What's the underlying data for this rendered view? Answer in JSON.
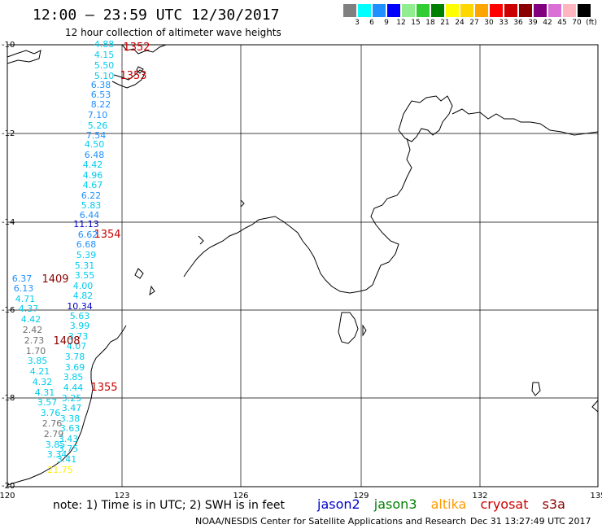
{
  "header": {
    "title": "12:00 – 23:59 UTC 12/30/2017",
    "subtitle": "12 hour collection of altimeter wave heights"
  },
  "colorbar": {
    "labels": [
      "3",
      "6",
      "9",
      "12",
      "15",
      "18",
      "21",
      "24",
      "27",
      "30",
      "33",
      "36",
      "39",
      "42",
      "45",
      "70",
      "(ft)"
    ],
    "colors": [
      "#808080",
      "#00ffff",
      "#1e90ff",
      "#0000ff",
      "#90ee90",
      "#32cd32",
      "#008000",
      "#ffff00",
      "#ffd700",
      "#ffa500",
      "#ff0000",
      "#cc0000",
      "#8b0000",
      "#800080",
      "#da70d6",
      "#ffb6c1",
      "#000000"
    ]
  },
  "axes": {
    "lat_labels": [
      "-10",
      "-12",
      "-14",
      "-16",
      "-18",
      "-20"
    ],
    "lon_labels": [
      "120",
      "123",
      "126",
      "129",
      "132",
      "135"
    ]
  },
  "passes": {
    "labels": [
      {
        "text": "1352",
        "color": "#cc0000"
      },
      {
        "text": "1353",
        "color": "#cc0000"
      },
      {
        "text": "1354",
        "color": "#cc0000"
      },
      {
        "text": "1409",
        "color": "#8b0000"
      },
      {
        "text": "1408",
        "color": "#8b0000"
      },
      {
        "text": "1355",
        "color": "#cc0000"
      }
    ]
  },
  "track_main": [
    {
      "v": "4.88",
      "c": "#00ccee"
    },
    {
      "v": "4.15",
      "c": "#00ccee"
    },
    {
      "v": "5.50",
      "c": "#00ccee"
    },
    {
      "v": "5.10",
      "c": "#00ccee"
    },
    {
      "v": "6.38",
      "c": "#1e90ff"
    },
    {
      "v": "6.53",
      "c": "#1e90ff"
    },
    {
      "v": "8.22",
      "c": "#1e90ff"
    },
    {
      "v": "7.10",
      "c": "#1e90ff"
    },
    {
      "v": "5.26",
      "c": "#00ccee"
    },
    {
      "v": "7.54",
      "c": "#1e90ff"
    },
    {
      "v": "4.50",
      "c": "#00ccee"
    },
    {
      "v": "6.48",
      "c": "#1e90ff"
    },
    {
      "v": "4.42",
      "c": "#00ccee"
    },
    {
      "v": "4.96",
      "c": "#00ccee"
    },
    {
      "v": "4.67",
      "c": "#00ccee"
    },
    {
      "v": "6.22",
      "c": "#1e90ff"
    },
    {
      "v": "5.83",
      "c": "#00ccee"
    },
    {
      "v": "6.44",
      "c": "#1e90ff"
    },
    {
      "v": "11.13",
      "c": "#0000cc"
    },
    {
      "v": "6.62",
      "c": "#1e90ff"
    },
    {
      "v": "6.68",
      "c": "#1e90ff"
    },
    {
      "v": "5.39",
      "c": "#00ccee"
    },
    {
      "v": "5.31",
      "c": "#00ccee"
    },
    {
      "v": "3.55",
      "c": "#00ccee"
    },
    {
      "v": "4.00",
      "c": "#00ccee"
    },
    {
      "v": "4.82",
      "c": "#00ccee"
    },
    {
      "v": "10.34",
      "c": "#0000cc"
    },
    {
      "v": "5.63",
      "c": "#00ccee"
    },
    {
      "v": "3.99",
      "c": "#00ccee"
    },
    {
      "v": "3.73",
      "c": "#00ccee"
    },
    {
      "v": "4.07",
      "c": "#00ccee"
    },
    {
      "v": "3.78",
      "c": "#00ccee"
    },
    {
      "v": "3.69",
      "c": "#00ccee"
    },
    {
      "v": "3.85",
      "c": "#00ccee"
    },
    {
      "v": "4.44",
      "c": "#00ccee"
    },
    {
      "v": "3.25",
      "c": "#00ccee"
    },
    {
      "v": "3.47",
      "c": "#00ccee"
    },
    {
      "v": "3.38",
      "c": "#00ccee"
    },
    {
      "v": "3.63",
      "c": "#00ccee"
    },
    {
      "v": "3.43",
      "c": "#00ccee"
    },
    {
      "v": "3.75",
      "c": "#00ccee"
    },
    {
      "v": "3.41",
      "c": "#00ccee"
    }
  ],
  "track_west": [
    {
      "v": "6.37",
      "c": "#1e90ff"
    },
    {
      "v": "6.13",
      "c": "#1e90ff"
    },
    {
      "v": "4.71",
      "c": "#00ccee"
    },
    {
      "v": "4.37",
      "c": "#00ccee"
    },
    {
      "v": "4.42",
      "c": "#00ccee"
    },
    {
      "v": "2.42",
      "c": "#707070"
    },
    {
      "v": "2.73",
      "c": "#707070"
    },
    {
      "v": "1.70",
      "c": "#707070"
    },
    {
      "v": "3.85",
      "c": "#00ccee"
    },
    {
      "v": "4.21",
      "c": "#00ccee"
    },
    {
      "v": "4.32",
      "c": "#00ccee"
    },
    {
      "v": "4.31",
      "c": "#00ccee"
    },
    {
      "v": "3.57",
      "c": "#00ccee"
    },
    {
      "v": "3.76",
      "c": "#00ccee"
    },
    {
      "v": "2.76",
      "c": "#707070"
    },
    {
      "v": "2.79",
      "c": "#707070"
    },
    {
      "v": "3.85",
      "c": "#00ccee"
    },
    {
      "v": "3.34",
      "c": "#00ccee"
    },
    {
      "v": "21.75",
      "c": "#ffee00"
    }
  ],
  "footer": {
    "note": "note: 1) Time is in UTC; 2) SWH is in feet",
    "satellites": [
      {
        "name": "jason2",
        "color": "#0000cc"
      },
      {
        "name": "jason3",
        "color": "#008000"
      },
      {
        "name": "altika",
        "color": "#ff9900"
      },
      {
        "name": "cryosat",
        "color": "#cc0000"
      },
      {
        "name": "s3a",
        "color": "#8b0000"
      }
    ],
    "credit": "NOAA/NESDIS Center for Satellite Applications and Research",
    "timestamp": "Dec 31 13:27:49 UTC 2017"
  }
}
